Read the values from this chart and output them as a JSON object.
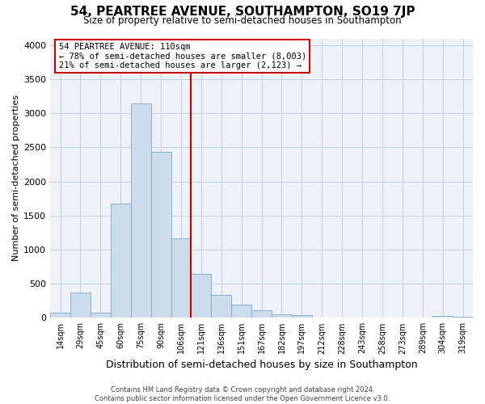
{
  "title": "54, PEARTREE AVENUE, SOUTHAMPTON, SO19 7JP",
  "subtitle": "Size of property relative to semi-detached houses in Southampton",
  "xlabel": "Distribution of semi-detached houses by size in Southampton",
  "ylabel": "Number of semi-detached properties",
  "footer1": "Contains HM Land Registry data © Crown copyright and database right 2024.",
  "footer2": "Contains public sector information licensed under the Open Government Licence v3.0.",
  "bin_labels": [
    "14sqm",
    "29sqm",
    "45sqm",
    "60sqm",
    "75sqm",
    "90sqm",
    "106sqm",
    "121sqm",
    "136sqm",
    "151sqm",
    "167sqm",
    "182sqm",
    "197sqm",
    "212sqm",
    "228sqm",
    "243sqm",
    "258sqm",
    "273sqm",
    "289sqm",
    "304sqm",
    "319sqm"
  ],
  "bar_values": [
    75,
    370,
    75,
    1680,
    3140,
    2430,
    1170,
    640,
    340,
    190,
    115,
    55,
    45,
    0,
    0,
    0,
    0,
    0,
    0,
    30,
    10
  ],
  "bar_color": "#cddcec",
  "bar_edge_color": "#7aaacf",
  "vline_x_index": 6.5,
  "vline_color": "#cc0000",
  "annotation_title": "54 PEARTREE AVENUE: 110sqm",
  "annotation_line1": "← 78% of semi-detached houses are smaller (8,003)",
  "annotation_line2": "21% of semi-detached houses are larger (2,123) →",
  "annotation_box_color": "#ffffff",
  "annotation_box_edge": "#cc0000",
  "ylim": [
    0,
    4100
  ],
  "yticks": [
    0,
    500,
    1000,
    1500,
    2000,
    2500,
    3000,
    3500,
    4000
  ],
  "bg_color": "#ffffff",
  "plot_bg_color": "#eef2f8",
  "grid_color": "#c5cfe0"
}
